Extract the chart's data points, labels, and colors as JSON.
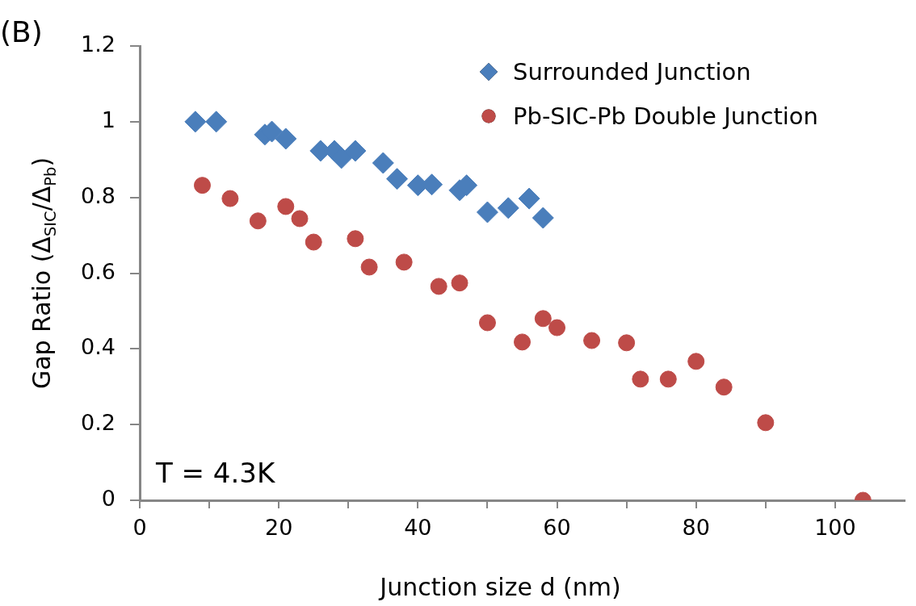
{
  "chart_data": {
    "type": "scatter",
    "title": "(B)",
    "xlabel": "Junction size d (nm)",
    "ylabel": "Gap Ratio (Δ$_{SIC}$/Δ$_{Pb}$)",
    "xlim": [
      0,
      110
    ],
    "xticks": [
      0,
      {
        "value": 10,
        "label": null
      },
      20,
      {
        "value": 30,
        "label": null
      },
      40,
      {
        "value": 50,
        "label": null
      },
      60,
      {
        "value": 70,
        "label": null
      },
      80,
      {
        "value": 90,
        "label": null
      },
      100
    ],
    "ylim": [
      0,
      1.2
    ],
    "yticks": [
      0,
      0.2,
      0.4,
      0.6,
      0.8,
      1,
      1.2
    ],
    "grid": false,
    "legend": "top right",
    "annotations": [
      "T = 4.3K"
    ],
    "series": [
      {
        "name": "Surrounded Junction",
        "color": "#4a7ebb",
        "marker": "diamond",
        "x": [
          8,
          11,
          18,
          19,
          21,
          26,
          28,
          29,
          31,
          35,
          37,
          40,
          42,
          46,
          47,
          50,
          53,
          56,
          58
        ],
        "values": [
          1.0,
          1.0,
          0.966,
          0.974,
          0.955,
          0.923,
          0.923,
          0.904,
          0.923,
          0.891,
          0.849,
          0.832,
          0.834,
          0.819,
          0.832,
          0.761,
          0.772,
          0.797,
          0.746
        ]
      },
      {
        "name": "Pb-SIC-Pb Double Junction",
        "color": "#be4b48",
        "marker": "circle",
        "x": [
          9,
          13,
          17,
          21,
          23,
          25,
          31,
          33,
          38,
          43,
          46,
          50,
          55,
          58,
          60,
          65,
          70,
          72,
          76,
          80,
          84,
          90,
          104
        ],
        "values": [
          0.832,
          0.797,
          0.738,
          0.776,
          0.744,
          0.682,
          0.691,
          0.616,
          0.629,
          0.565,
          0.574,
          0.469,
          0.418,
          0.48,
          0.456,
          0.422,
          0.416,
          0.32,
          0.32,
          0.367,
          0.299,
          0.205,
          0
        ]
      }
    ]
  }
}
